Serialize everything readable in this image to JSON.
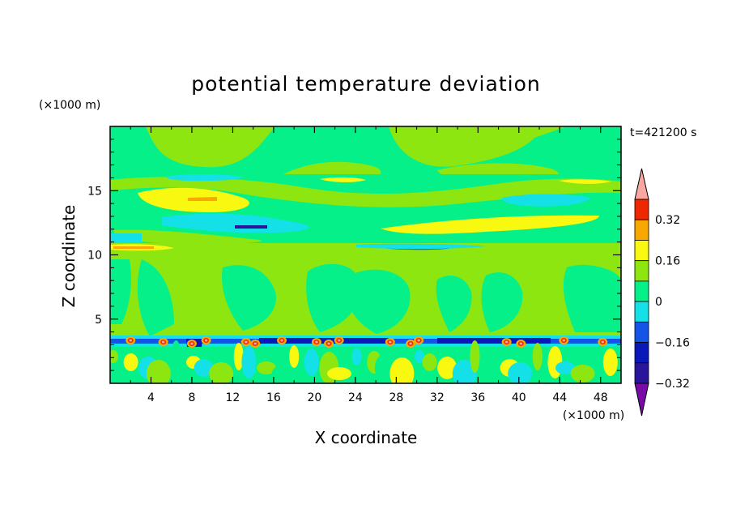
{
  "chart_data": {
    "type": "heatmap",
    "title": "potential temperature deviation",
    "xlabel": "X coordinate",
    "ylabel": "Z coordinate",
    "x_unit": "(×1000 m)",
    "y_unit": "(×1000 m)",
    "time_label": "t=421200 s",
    "xlim": [
      0,
      50
    ],
    "ylim": [
      0,
      20
    ],
    "x_ticks": [
      "4",
      "8",
      "12",
      "16",
      "20",
      "24",
      "28",
      "32",
      "36",
      "40",
      "44",
      "48"
    ],
    "y_ticks": [
      "5",
      "10",
      "15"
    ],
    "colorbar": {
      "levels": [
        -0.4,
        -0.32,
        -0.24,
        -0.16,
        -0.08,
        0,
        0.08,
        0.16,
        0.24,
        0.32,
        0.4
      ],
      "tick_labels": [
        "0.32",
        "0.16",
        "0",
        "−0.16",
        "−0.32"
      ],
      "colors": [
        "#7a0aa8",
        "#28159a",
        "#0a17b9",
        "#1455e8",
        "#14e0e8",
        "#06f08a",
        "#8ee610",
        "#f8f810",
        "#f8a800",
        "#f02800",
        "#f8a8a0"
      ]
    },
    "layers": [
      {
        "z_range": [
          16.4,
          20
        ],
        "dominant": 0.04,
        "description_level": "zero to +0.08"
      },
      {
        "z_range": [
          11,
          16.4
        ],
        "dominant": 0,
        "features": "alternating positive and negative bands"
      },
      {
        "z_range": [
          3.5,
          11
        ],
        "dominant": 0.04,
        "features": "plume-like neutral structures"
      },
      {
        "z_range": [
          3,
          3.8
        ],
        "dominant": -0.2,
        "features": "strong negative band with embedded positive peaks"
      },
      {
        "z_range": [
          0,
          3
        ],
        "dominant": 0.04,
        "features": "turbulent mixed eddies"
      }
    ]
  }
}
